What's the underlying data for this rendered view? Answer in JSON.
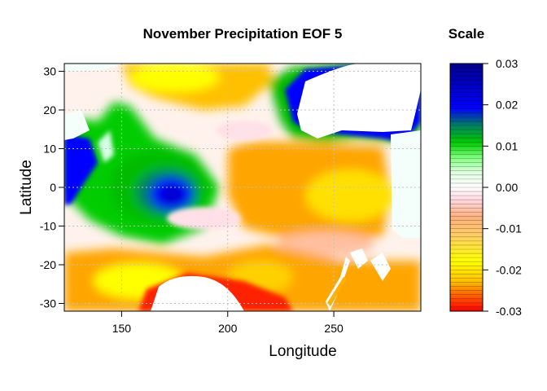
{
  "chart_data": {
    "type": "heatmap",
    "title": "November Precipitation EOF 5",
    "xlabel": "Longitude",
    "ylabel": "Latitude",
    "xlim": [
      123,
      291
    ],
    "ylim": [
      -32,
      32
    ],
    "x_ticks": [
      150,
      200,
      250
    ],
    "y_ticks": [
      30,
      20,
      10,
      0,
      -10,
      -20,
      -30
    ],
    "grid": true,
    "scale": {
      "title": "Scale",
      "min": -0.03,
      "max": 0.03,
      "ticks": [
        "0.03",
        "0.02",
        "0.01",
        "0.00",
        "-0.01",
        "-0.02",
        "-0.03"
      ],
      "colors": [
        "#ff0000",
        "#ff6a00",
        "#ffa500",
        "#ffd000",
        "#ffff00",
        "#ffc080",
        "#ffe0e8",
        "#ffffff",
        "#e0ffe0",
        "#80ff80",
        "#00c800",
        "#008080",
        "#0000ff",
        "#00008b"
      ]
    },
    "features": [
      {
        "name": "Blue maximum (central)",
        "lon": 177,
        "lat": -2,
        "value": 0.028
      },
      {
        "name": "Green band west",
        "lon": 140,
        "lat": 5,
        "value": 0.012
      },
      {
        "name": "Blue region west edge",
        "lon": 128,
        "lat": 3,
        "value": 0.025
      },
      {
        "name": "Blue band NE",
        "lon": 235,
        "lat": 16,
        "value": 0.027
      },
      {
        "name": "Orange region equatorial east",
        "lon": 240,
        "lat": 0,
        "value": -0.015
      },
      {
        "name": "Yellow core east",
        "lon": 255,
        "lat": -2,
        "value": -0.02
      },
      {
        "name": "Yellow band north",
        "lon": 200,
        "lat": 27,
        "value": -0.02
      },
      {
        "name": "Red minimum south",
        "lon": 220,
        "lat": -28,
        "value": -0.03
      }
    ]
  }
}
